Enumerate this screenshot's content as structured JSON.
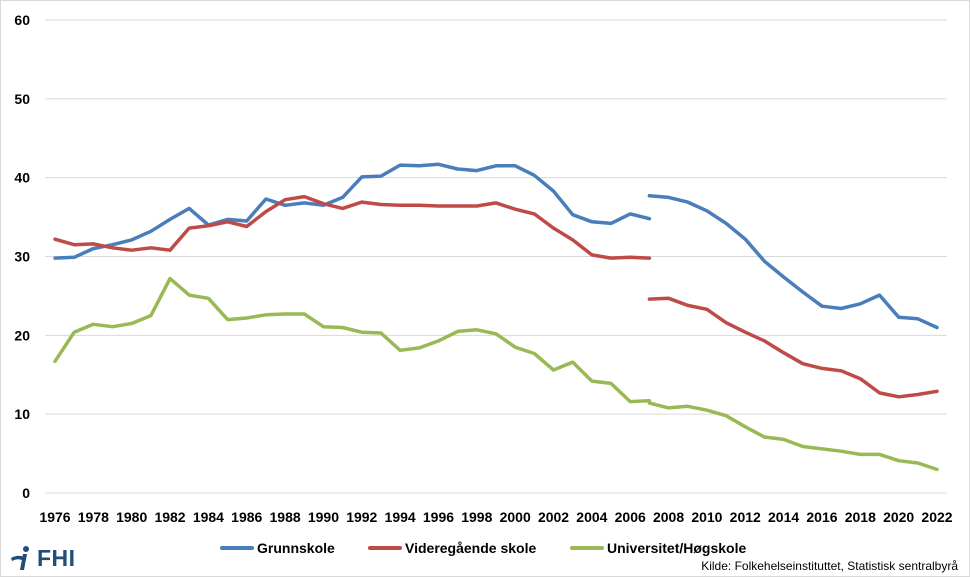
{
  "chart_data": {
    "type": "line",
    "title": "",
    "xlabel": "",
    "ylabel": "",
    "ylim": [
      0,
      60
    ],
    "yticks": [
      "0",
      "10",
      "20",
      "30",
      "40",
      "50",
      "60"
    ],
    "xticks": [
      "1976",
      "1978",
      "1980",
      "1982",
      "1984",
      "1986",
      "1988",
      "1990",
      "1992",
      "1994",
      "1996",
      "1998",
      "2000",
      "2002",
      "2004",
      "2006",
      "2008",
      "2010",
      "2012",
      "2014",
      "2016",
      "2018",
      "2020",
      "2022"
    ],
    "grid": "horizontal",
    "legend_position": "bottom",
    "series": [
      {
        "name": "Grunnskole",
        "color": "#4a7ebb",
        "segments": [
          {
            "x": [
              1976,
              1977,
              1978,
              1979,
              1980,
              1981,
              1982,
              1983,
              1984,
              1985,
              1986,
              1987,
              1988,
              1989,
              1990,
              1991,
              1992,
              1993,
              1994,
              1995,
              1996,
              1997,
              1998,
              1999,
              2000,
              2001,
              2002,
              2003,
              2004,
              2005,
              2006,
              2007
            ],
            "y": [
              29.8,
              29.9,
              31.0,
              31.5,
              32.1,
              33.2,
              34.7,
              36.1,
              34.0,
              34.7,
              34.5,
              37.3,
              36.5,
              36.8,
              36.5,
              37.5,
              40.1,
              40.2,
              41.6,
              41.5,
              41.7,
              41.1,
              40.9,
              41.5,
              41.5,
              40.3,
              38.3,
              35.3,
              34.4,
              34.2,
              35.4,
              34.8
            ]
          },
          {
            "x": [
              2007,
              2008,
              2009,
              2010,
              2011,
              2012,
              2013,
              2014,
              2015,
              2016,
              2017,
              2018,
              2019,
              2020,
              2021,
              2022
            ],
            "y": [
              37.7,
              37.5,
              36.9,
              35.8,
              34.2,
              32.2,
              29.4,
              27.4,
              25.5,
              23.7,
              23.4,
              24.0,
              25.1,
              22.3,
              22.1,
              21.0
            ]
          }
        ]
      },
      {
        "name": "Videregående skole",
        "color": "#be4b48",
        "segments": [
          {
            "x": [
              1976,
              1977,
              1978,
              1979,
              1980,
              1981,
              1982,
              1983,
              1984,
              1985,
              1986,
              1987,
              1988,
              1989,
              1990,
              1991,
              1992,
              1993,
              1994,
              1995,
              1996,
              1997,
              1998,
              1999,
              2000,
              2001,
              2002,
              2003,
              2004,
              2005,
              2006,
              2007
            ],
            "y": [
              32.2,
              31.5,
              31.6,
              31.1,
              30.8,
              31.1,
              30.8,
              33.6,
              33.9,
              34.4,
              33.8,
              35.7,
              37.2,
              37.6,
              36.7,
              36.1,
              36.9,
              36.6,
              36.5,
              36.5,
              36.4,
              36.4,
              36.4,
              36.8,
              36.0,
              35.4,
              33.6,
              32.1,
              30.2,
              29.8,
              29.9,
              29.8
            ]
          },
          {
            "x": [
              2007,
              2008,
              2009,
              2010,
              2011,
              2012,
              2013,
              2014,
              2015,
              2016,
              2017,
              2018,
              2019,
              2020,
              2021,
              2022
            ],
            "y": [
              24.6,
              24.7,
              23.8,
              23.3,
              21.6,
              20.4,
              19.3,
              17.8,
              16.4,
              15.8,
              15.5,
              14.5,
              12.7,
              12.2,
              12.5,
              12.9
            ]
          }
        ]
      },
      {
        "name": "Universitet/Høgskole",
        "color": "#98b954",
        "segments": [
          {
            "x": [
              1976,
              1977,
              1978,
              1979,
              1980,
              1981,
              1982,
              1983,
              1984,
              1985,
              1986,
              1987,
              1988,
              1989,
              1990,
              1991,
              1992,
              1993,
              1994,
              1995,
              1996,
              1997,
              1998,
              1999,
              2000,
              2001,
              2002,
              2003,
              2004,
              2005,
              2006,
              2007
            ],
            "y": [
              16.7,
              20.4,
              21.4,
              21.1,
              21.5,
              22.5,
              27.2,
              25.1,
              24.7,
              22.0,
              22.2,
              22.6,
              22.7,
              22.7,
              21.1,
              21.0,
              20.4,
              20.3,
              18.1,
              18.4,
              19.3,
              20.5,
              20.7,
              20.2,
              18.5,
              17.7,
              15.6,
              16.6,
              14.2,
              13.9,
              11.6,
              11.7
            ]
          },
          {
            "x": [
              2007,
              2008,
              2009,
              2010,
              2011,
              2012,
              2013,
              2014,
              2015,
              2016,
              2017,
              2018,
              2019,
              2020,
              2021,
              2022
            ],
            "y": [
              11.4,
              10.8,
              11.0,
              10.5,
              9.8,
              8.4,
              7.1,
              6.8,
              5.9,
              5.6,
              5.3,
              4.9,
              4.9,
              4.1,
              3.8,
              3.0
            ]
          }
        ]
      }
    ]
  },
  "source_text": "Kilde: Folkehelseinstituttet, Statistisk sentralbyrå",
  "logo": {
    "text": "FHI",
    "icon": "fhi-figure-icon",
    "color": "#1f4e79"
  }
}
